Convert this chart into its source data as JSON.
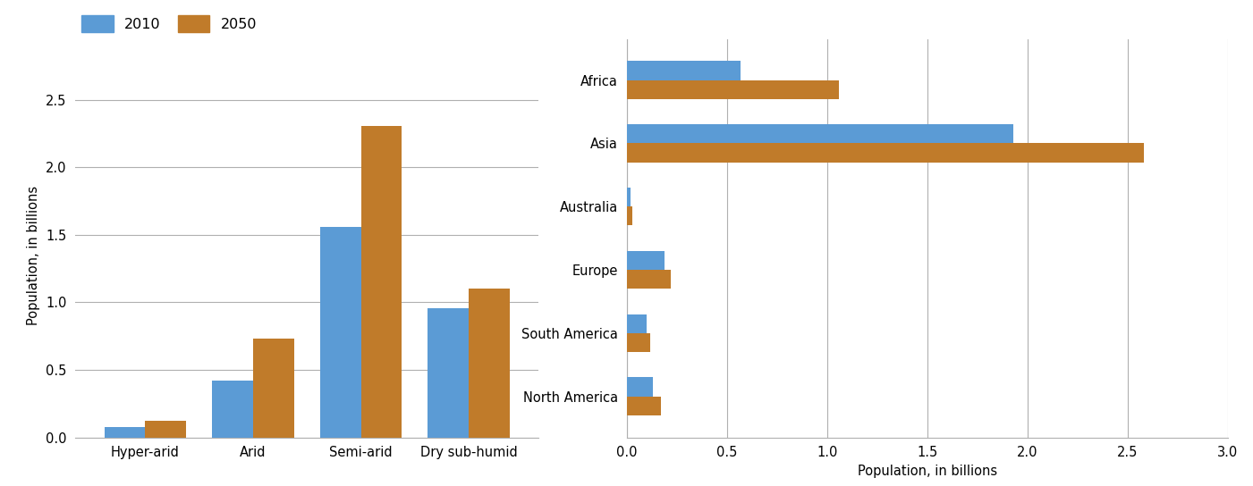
{
  "bar_categories": [
    "Hyper-arid",
    "Arid",
    "Semi-arid",
    "Dry sub-humid"
  ],
  "bar_2010": [
    0.08,
    0.42,
    1.56,
    0.96
  ],
  "bar_2050": [
    0.12,
    0.73,
    2.31,
    1.1
  ],
  "bar_ylabel": "Population, in billions",
  "bar_ylim": [
    0,
    2.7
  ],
  "bar_yticks": [
    0.0,
    0.5,
    1.0,
    1.5,
    2.0,
    2.5
  ],
  "hbar_categories": [
    "Africa",
    "Asia",
    "Australia",
    "Europe",
    "South America",
    "North America"
  ],
  "hbar_2010": [
    0.57,
    1.93,
    0.02,
    0.19,
    0.1,
    0.13
  ],
  "hbar_2050": [
    1.06,
    2.58,
    0.03,
    0.22,
    0.12,
    0.17
  ],
  "hbar_xlabel": "Population, in billions",
  "hbar_xlim": [
    0,
    3.0
  ],
  "hbar_xticks": [
    0.0,
    0.5,
    1.0,
    1.5,
    2.0,
    2.5,
    3.0
  ],
  "color_2010": "#5b9bd5",
  "color_2050": "#c07b2a",
  "legend_labels": [
    "2010",
    "2050"
  ],
  "background_color": "#ffffff",
  "grid_color": "#b0b0b0",
  "spine_color": "#b0b0b0"
}
